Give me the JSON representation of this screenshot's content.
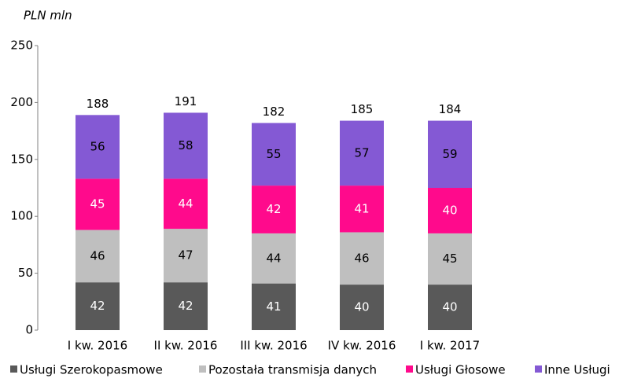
{
  "chart_data": {
    "type": "stacked_bar",
    "title": "PLN mln",
    "categories": [
      "I kw. 2016",
      "II kw. 2016",
      "III kw. 2016",
      "IV kw. 2016",
      "I kw. 2017"
    ],
    "series": [
      {
        "name": "Usługi Szerokopasmowe",
        "color": "#595959",
        "label_color": "#ffffff",
        "values": [
          42,
          42,
          41,
          40,
          40
        ]
      },
      {
        "name": "Pozostała transmisja danych",
        "color": "#bfbfbf",
        "label_color": "#000000",
        "values": [
          46,
          47,
          44,
          46,
          45
        ]
      },
      {
        "name": "Usługi Głosowe",
        "color": "#ff0a8c",
        "label_color": "#ffffff",
        "values": [
          45,
          44,
          42,
          41,
          40
        ]
      },
      {
        "name": "Inne Usługi",
        "color": "#8459d4",
        "label_color": "#000000",
        "values": [
          56,
          58,
          55,
          57,
          59
        ]
      }
    ],
    "totals": [
      188,
      191,
      182,
      185,
      184
    ],
    "ylim": [
      0,
      250
    ],
    "yticks": [
      0,
      50,
      100,
      150,
      200,
      250
    ],
    "grid": false
  }
}
